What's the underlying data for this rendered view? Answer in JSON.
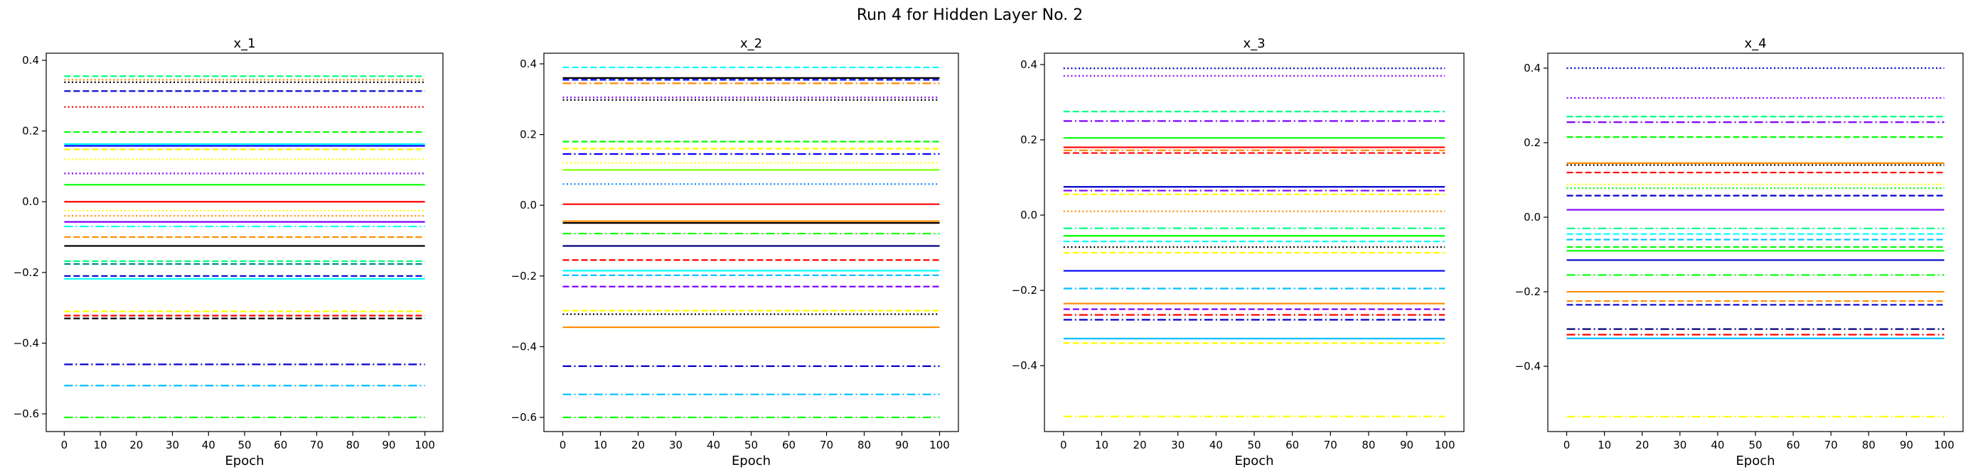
{
  "figure": {
    "title": "Run 4 for Hidden Layer No. 2"
  },
  "chart_data": [
    {
      "type": "line",
      "title": "x_1",
      "xlabel": "Epoch",
      "ylabel": "",
      "xlim": [
        0,
        100
      ],
      "ylim": [
        -0.65,
        0.42
      ],
      "xticks": [
        0,
        10,
        20,
        30,
        40,
        50,
        60,
        70,
        80,
        90,
        100
      ],
      "yticks": [
        -0.6,
        -0.4,
        -0.2,
        0.0,
        0.2,
        0.4
      ],
      "ytick_labels": [
        "−0.6",
        "−0.4",
        "−0.2",
        "0.0",
        "0.2",
        "0.4"
      ],
      "grid": false,
      "series": [
        {
          "y": 0.355,
          "color": "#00ff80",
          "style": "dashed"
        },
        {
          "y": 0.345,
          "color": "#ff8c00",
          "style": "dotted"
        },
        {
          "y": 0.338,
          "color": "#000000",
          "style": "dotted"
        },
        {
          "y": 0.313,
          "color": "#0000cd",
          "style": "dashed"
        },
        {
          "y": 0.268,
          "color": "#ff0000",
          "style": "dotted"
        },
        {
          "y": 0.197,
          "color": "#00ff00",
          "style": "dashed"
        },
        {
          "y": 0.163,
          "color": "#00ffff",
          "style": "solid"
        },
        {
          "y": 0.158,
          "color": "#0000ff",
          "style": "solid"
        },
        {
          "y": 0.148,
          "color": "#ffff00",
          "style": "dashed"
        },
        {
          "y": 0.12,
          "color": "#ffff00",
          "style": "dotted"
        },
        {
          "y": 0.08,
          "color": "#8000ff",
          "style": "dotted"
        },
        {
          "y": 0.048,
          "color": "#00ff00",
          "style": "solid"
        },
        {
          "y": 0.0,
          "color": "#ff0000",
          "style": "solid"
        },
        {
          "y": -0.025,
          "color": "#ffff00",
          "style": "dotted"
        },
        {
          "y": -0.04,
          "color": "#ff8c00",
          "style": "dotted"
        },
        {
          "y": -0.057,
          "color": "#8000ff",
          "style": "solid"
        },
        {
          "y": -0.07,
          "color": "#00ffff",
          "style": "dashdot"
        },
        {
          "y": -0.1,
          "color": "#ff8c00",
          "style": "dashed"
        },
        {
          "y": -0.125,
          "color": "#000000",
          "style": "solid"
        },
        {
          "y": -0.168,
          "color": "#00ff80",
          "style": "dashed"
        },
        {
          "y": -0.176,
          "color": "#008b8b",
          "style": "dashed"
        },
        {
          "y": -0.21,
          "color": "#0000cd",
          "style": "dashed"
        },
        {
          "y": -0.218,
          "color": "#00ffff",
          "style": "solid"
        },
        {
          "y": -0.31,
          "color": "#ffff00",
          "style": "dashed"
        },
        {
          "y": -0.322,
          "color": "#ff0000",
          "style": "dashed"
        },
        {
          "y": -0.33,
          "color": "#000000",
          "style": "dashed"
        },
        {
          "y": -0.46,
          "color": "#0000cd",
          "style": "dashdot"
        },
        {
          "y": -0.52,
          "color": "#00bfff",
          "style": "dashdot"
        },
        {
          "y": -0.61,
          "color": "#00ff00",
          "style": "dashdot"
        }
      ]
    },
    {
      "type": "line",
      "title": "x_2",
      "xlabel": "Epoch",
      "ylabel": "",
      "xlim": [
        0,
        100
      ],
      "ylim": [
        -0.64,
        0.43
      ],
      "xticks": [
        0,
        10,
        20,
        30,
        40,
        50,
        60,
        70,
        80,
        90,
        100
      ],
      "yticks": [
        -0.6,
        -0.4,
        -0.2,
        0.0,
        0.2,
        0.4
      ],
      "ytick_labels": [
        "−0.6",
        "−0.4",
        "−0.2",
        "0.0",
        "0.2",
        "0.4"
      ],
      "grid": false,
      "series": [
        {
          "y": 0.39,
          "color": "#00ffff",
          "style": "dashed"
        },
        {
          "y": 0.36,
          "color": "#000000",
          "style": "solid"
        },
        {
          "y": 0.355,
          "color": "#0000ff",
          "style": "dashed"
        },
        {
          "y": 0.345,
          "color": "#ff8c00",
          "style": "dashdot"
        },
        {
          "y": 0.305,
          "color": "#8000ff",
          "style": "dotted"
        },
        {
          "y": 0.298,
          "color": "#000000",
          "style": "dotted"
        },
        {
          "y": 0.18,
          "color": "#00ff00",
          "style": "dashed"
        },
        {
          "y": 0.16,
          "color": "#ffff00",
          "style": "dashed"
        },
        {
          "y": 0.145,
          "color": "#0000ff",
          "style": "dashdot"
        },
        {
          "y": 0.12,
          "color": "#ffff00",
          "style": "dotted"
        },
        {
          "y": 0.1,
          "color": "#80ff00",
          "style": "solid"
        },
        {
          "y": 0.06,
          "color": "#0080ff",
          "style": "dotted"
        },
        {
          "y": 0.003,
          "color": "#ff0000",
          "style": "solid"
        },
        {
          "y": -0.045,
          "color": "#ff8c00",
          "style": "solid"
        },
        {
          "y": -0.05,
          "color": "#000000",
          "style": "solid"
        },
        {
          "y": -0.08,
          "color": "#00ff00",
          "style": "dashdot"
        },
        {
          "y": -0.115,
          "color": "#000080",
          "style": "solid"
        },
        {
          "y": -0.155,
          "color": "#ff0000",
          "style": "dashed"
        },
        {
          "y": -0.185,
          "color": "#00ffff",
          "style": "solid"
        },
        {
          "y": -0.198,
          "color": "#00bfff",
          "style": "dashed"
        },
        {
          "y": -0.23,
          "color": "#8000ff",
          "style": "dashed"
        },
        {
          "y": -0.298,
          "color": "#ffff00",
          "style": "dashed"
        },
        {
          "y": -0.308,
          "color": "#000000",
          "style": "dotted"
        },
        {
          "y": -0.345,
          "color": "#ff8c00",
          "style": "solid"
        },
        {
          "y": -0.455,
          "color": "#0000cd",
          "style": "dashdot"
        },
        {
          "y": -0.535,
          "color": "#00bfff",
          "style": "dashdot"
        },
        {
          "y": -0.6,
          "color": "#00ff00",
          "style": "dashdot"
        }
      ]
    },
    {
      "type": "line",
      "title": "x_3",
      "xlabel": "Epoch",
      "ylabel": "",
      "xlim": [
        0,
        100
      ],
      "ylim": [
        -0.575,
        0.43
      ],
      "xticks": [
        0,
        10,
        20,
        30,
        40,
        50,
        60,
        70,
        80,
        90,
        100
      ],
      "yticks": [
        -0.4,
        -0.2,
        0.0,
        0.2,
        0.4
      ],
      "ytick_labels": [
        "−0.4",
        "−0.2",
        "0.0",
        "0.2",
        "0.4"
      ],
      "grid": false,
      "series": [
        {
          "y": 0.39,
          "color": "#0000cd",
          "style": "dotted"
        },
        {
          "y": 0.37,
          "color": "#8000ff",
          "style": "dotted"
        },
        {
          "y": 0.275,
          "color": "#00ff80",
          "style": "dashed"
        },
        {
          "y": 0.25,
          "color": "#8000ff",
          "style": "dashdot"
        },
        {
          "y": 0.205,
          "color": "#00ff00",
          "style": "solid"
        },
        {
          "y": 0.18,
          "color": "#ff0000",
          "style": "solid"
        },
        {
          "y": 0.172,
          "color": "#ff8c00",
          "style": "dashdot"
        },
        {
          "y": 0.165,
          "color": "#ff0000",
          "style": "dashed"
        },
        {
          "y": 0.075,
          "color": "#0000cd",
          "style": "solid"
        },
        {
          "y": 0.065,
          "color": "#8000ff",
          "style": "dashdot"
        },
        {
          "y": 0.055,
          "color": "#ffff00",
          "style": "dashed"
        },
        {
          "y": 0.01,
          "color": "#ff8c00",
          "style": "dotted"
        },
        {
          "y": -0.035,
          "color": "#00ff80",
          "style": "dashdot"
        },
        {
          "y": -0.055,
          "color": "#00ff00",
          "style": "solid"
        },
        {
          "y": -0.07,
          "color": "#00ffff",
          "style": "dashed"
        },
        {
          "y": -0.085,
          "color": "#000000",
          "style": "dotted"
        },
        {
          "y": -0.1,
          "color": "#ffff00",
          "style": "dashed"
        },
        {
          "y": -0.148,
          "color": "#0000ff",
          "style": "solid"
        },
        {
          "y": -0.195,
          "color": "#00bfff",
          "style": "dashdot"
        },
        {
          "y": -0.235,
          "color": "#ff8c00",
          "style": "solid"
        },
        {
          "y": -0.25,
          "color": "#8000ff",
          "style": "dashed"
        },
        {
          "y": -0.265,
          "color": "#ff0000",
          "style": "dashdot"
        },
        {
          "y": -0.278,
          "color": "#0000cd",
          "style": "dashdot"
        },
        {
          "y": -0.328,
          "color": "#00bfff",
          "style": "solid"
        },
        {
          "y": -0.34,
          "color": "#ffff00",
          "style": "dashed"
        },
        {
          "y": -0.535,
          "color": "#ffff00",
          "style": "dashdot"
        }
      ]
    },
    {
      "type": "line",
      "title": "x_4",
      "xlabel": "Epoch",
      "ylabel": "",
      "xlim": [
        0,
        100
      ],
      "ylim": [
        -0.575,
        0.44
      ],
      "xticks": [
        0,
        10,
        20,
        30,
        40,
        50,
        60,
        70,
        80,
        90,
        100
      ],
      "yticks": [
        -0.4,
        -0.2,
        0.0,
        0.2,
        0.4
      ],
      "ytick_labels": [
        "−0.4",
        "−0.2",
        "0.0",
        "0.2",
        "0.4"
      ],
      "grid": false,
      "series": [
        {
          "y": 0.4,
          "color": "#0000cd",
          "style": "dotted"
        },
        {
          "y": 0.32,
          "color": "#8000ff",
          "style": "dotted"
        },
        {
          "y": 0.27,
          "color": "#00ff80",
          "style": "dashed"
        },
        {
          "y": 0.255,
          "color": "#8000ff",
          "style": "dashdot"
        },
        {
          "y": 0.215,
          "color": "#00ff00",
          "style": "dashed"
        },
        {
          "y": 0.145,
          "color": "#ff8c00",
          "style": "solid"
        },
        {
          "y": 0.14,
          "color": "#000000",
          "style": "dotted"
        },
        {
          "y": 0.12,
          "color": "#ff0000",
          "style": "dashed"
        },
        {
          "y": 0.088,
          "color": "#ffff00",
          "style": "dotted"
        },
        {
          "y": 0.078,
          "color": "#00ff00",
          "style": "dotted"
        },
        {
          "y": 0.058,
          "color": "#0000cd",
          "style": "dashed"
        },
        {
          "y": 0.02,
          "color": "#8000ff",
          "style": "solid"
        },
        {
          "y": -0.03,
          "color": "#00ff80",
          "style": "dashdot"
        },
        {
          "y": -0.045,
          "color": "#00ffff",
          "style": "dashed"
        },
        {
          "y": -0.06,
          "color": "#00bfff",
          "style": "dashed"
        },
        {
          "y": -0.08,
          "color": "#00ff00",
          "style": "dashed"
        },
        {
          "y": -0.09,
          "color": "#00ff00",
          "style": "solid"
        },
        {
          "y": -0.115,
          "color": "#0000cd",
          "style": "solid"
        },
        {
          "y": -0.155,
          "color": "#00ff00",
          "style": "dashdot"
        },
        {
          "y": -0.2,
          "color": "#ff8c00",
          "style": "solid"
        },
        {
          "y": -0.225,
          "color": "#ff8c00",
          "style": "dashed"
        },
        {
          "y": -0.235,
          "color": "#0000cd",
          "style": "dashed"
        },
        {
          "y": -0.3,
          "color": "#000080",
          "style": "dashdot"
        },
        {
          "y": -0.315,
          "color": "#ff0000",
          "style": "dashdot"
        },
        {
          "y": -0.325,
          "color": "#00bfff",
          "style": "solid"
        },
        {
          "y": -0.535,
          "color": "#ffff00",
          "style": "dashdot"
        }
      ]
    }
  ]
}
